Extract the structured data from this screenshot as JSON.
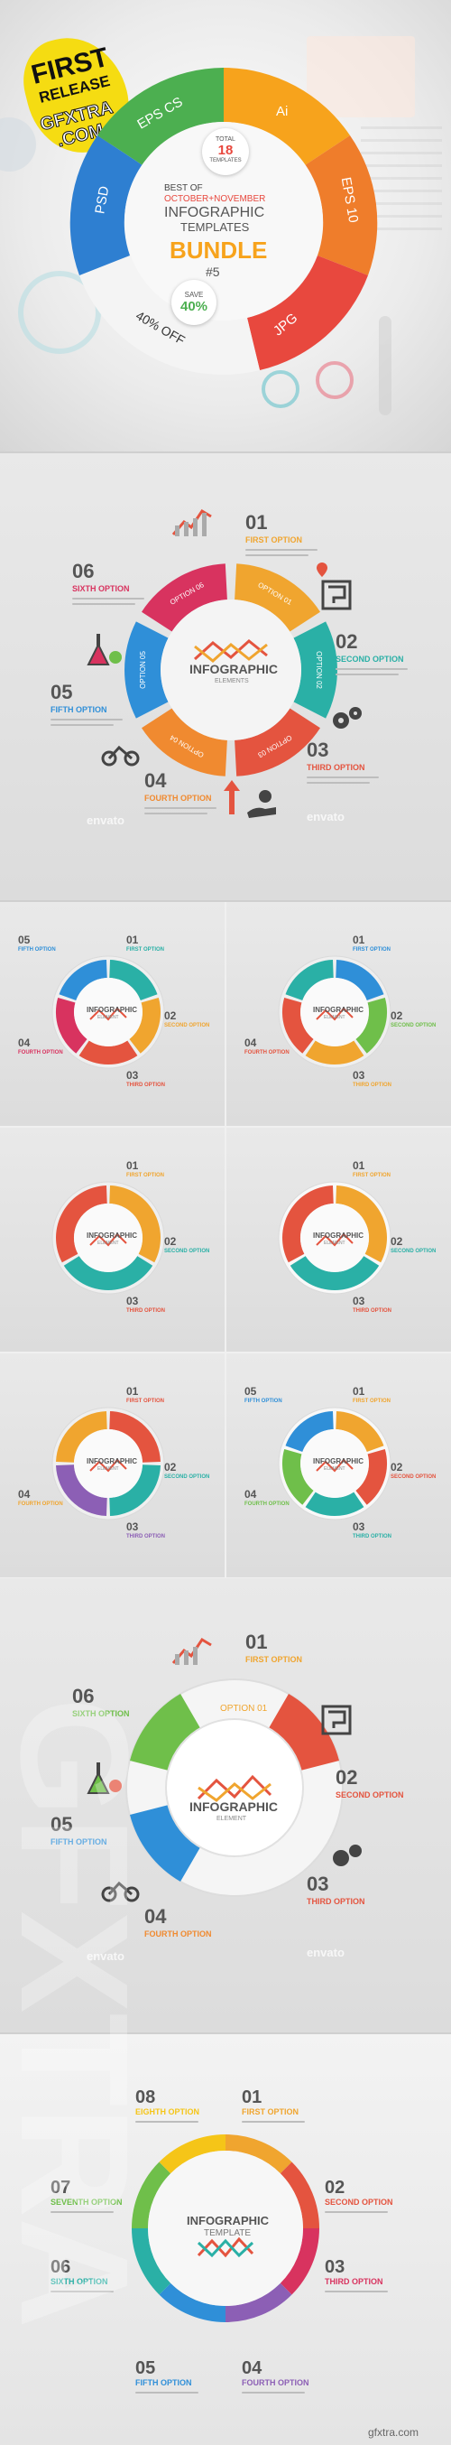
{
  "cover": {
    "badge_line1": "FIRST",
    "badge_line2": "RELEASE",
    "badge_line3": "GFXTRA",
    "badge_line4": ".COM",
    "format_eps_cs": "EPS CS",
    "format_ai": "Ai",
    "format_eps10": "EPS 10",
    "format_psd": "PSD",
    "format_jpg": "JPG",
    "total_label": "TOTAL",
    "total_number": "18",
    "templates_label": "TEMPLATES",
    "best_of": "BEST OF",
    "months": "OCTOBER+NOVEMBER",
    "infographic": "INFOGRAPHIC",
    "templates": "TEMPLATES",
    "bundle": "BUNDLE",
    "bundle_number": "#5",
    "save_label": "SAVE",
    "save_value": "40%",
    "off_label": "40% OFF"
  },
  "hero": {
    "center_title": "INFOGRAPHIC",
    "center_sub": "ELEMENTS",
    "options": [
      {
        "num": "01",
        "label": "FIRST OPTION",
        "color": "#f0a52f"
      },
      {
        "num": "02",
        "label": "SECOND OPTION",
        "color": "#2ab0a6"
      },
      {
        "num": "03",
        "label": "THIRD OPTION",
        "color": "#e4543f"
      },
      {
        "num": "04",
        "label": "FOURTH OPTION",
        "color": "#f08a30"
      },
      {
        "num": "05",
        "label": "FIFTH OPTION",
        "color": "#2f8fd8"
      },
      {
        "num": "06",
        "label": "SIXTH OPTION",
        "color": "#d8335f"
      }
    ],
    "ring": [
      "OPTION 01",
      "OPTION 02",
      "OPTION 03",
      "OPTION 04",
      "OPTION 05",
      "OPTION 06"
    ]
  },
  "small": {
    "center_title": "INFOGRAPHIC",
    "center_sub": "ELEMENT",
    "n01": "01",
    "n02": "02",
    "n03": "03",
    "n04": "04",
    "n05": "05",
    "o01": "FIRST OPTION",
    "o02": "SECOND OPTION",
    "o03": "THIRD OPTION",
    "o04": "FOURTH OPTION",
    "o05": "FIFTH OPTION"
  },
  "white": {
    "center_title": "INFOGRAPHIC",
    "center_sub": "ELEMENT",
    "options": [
      {
        "num": "01",
        "label": "FIRST OPTION"
      },
      {
        "num": "02",
        "label": "SECOND OPTION"
      },
      {
        "num": "03",
        "label": "THIRD OPTION"
      },
      {
        "num": "04",
        "label": "FOURTH OPTION"
      },
      {
        "num": "05",
        "label": "FIFTH OPTION"
      },
      {
        "num": "06",
        "label": "SIXTH OPTION"
      }
    ],
    "ring_top": "OPTION 01"
  },
  "last": {
    "center_title": "INFOGRAPHIC",
    "center_sub": "TEMPLATE",
    "options": [
      {
        "num": "01",
        "label": "FIRST OPTION"
      },
      {
        "num": "02",
        "label": "SECOND OPTION"
      },
      {
        "num": "03",
        "label": "THIRD OPTION"
      },
      {
        "num": "04",
        "label": "FOURTH OPTION"
      },
      {
        "num": "05",
        "label": "FIFTH OPTION"
      },
      {
        "num": "06",
        "label": "SIXTH OPTION"
      },
      {
        "num": "07",
        "label": "SEVENTH OPTION"
      },
      {
        "num": "08",
        "label": "EIGHTH OPTION"
      }
    ]
  },
  "watermark": {
    "text": "GFXTRA",
    "corner": "gfxtra.com",
    "stock": "envato"
  },
  "colors": {
    "orange": "#f0a52f",
    "teal": "#2ab0a6",
    "red": "#e4543f",
    "blue": "#2f8fd8",
    "pink": "#d8335f",
    "green": "#6fbf4a",
    "purple": "#8c5fb5"
  }
}
